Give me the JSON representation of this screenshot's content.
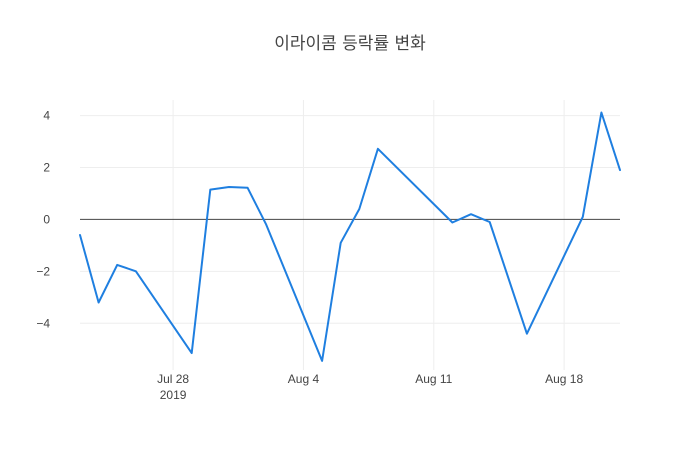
{
  "chart_data": {
    "type": "line",
    "title": "이라이콤 등락률 변화",
    "xlabel": "",
    "ylabel": "",
    "x_range": [
      "2019-07-23",
      "2019-08-21"
    ],
    "ylim": [
      -5.8,
      4.6
    ],
    "grid": true,
    "x_ticks": [
      {
        "date": "2019-07-28",
        "label": "Jul 28",
        "sublabel": "2019"
      },
      {
        "date": "2019-08-04",
        "label": "Aug 4",
        "sublabel": ""
      },
      {
        "date": "2019-08-11",
        "label": "Aug 11",
        "sublabel": ""
      },
      {
        "date": "2019-08-18",
        "label": "Aug 18",
        "sublabel": ""
      }
    ],
    "y_ticks": [
      4,
      2,
      0,
      -2,
      -4
    ],
    "y_tick_labels": [
      "4",
      "2",
      "0",
      "−2",
      "−4"
    ],
    "series": [
      {
        "color": "#1f7fe0",
        "x": [
          "2019-07-23",
          "2019-07-24",
          "2019-07-25",
          "2019-07-26",
          "2019-07-29",
          "2019-07-30",
          "2019-07-31",
          "2019-08-01",
          "2019-08-02",
          "2019-08-05",
          "2019-08-06",
          "2019-08-07",
          "2019-08-08",
          "2019-08-12",
          "2019-08-13",
          "2019-08-14",
          "2019-08-16",
          "2019-08-19",
          "2019-08-20",
          "2019-08-21"
        ],
        "y": [
          -0.6,
          -3.2,
          -1.75,
          -2.0,
          -5.15,
          1.15,
          1.25,
          1.22,
          -0.2,
          -5.45,
          -0.9,
          0.4,
          2.72,
          -0.12,
          0.2,
          -0.1,
          -4.4,
          0.1,
          4.12,
          1.9
        ]
      }
    ]
  }
}
